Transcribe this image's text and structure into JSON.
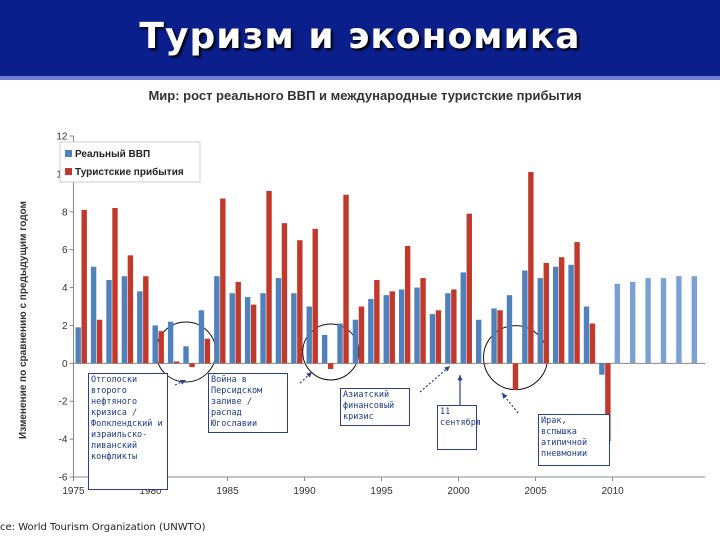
{
  "slide": {
    "title": "Туризм и экономика",
    "source": "ce: World Tourism Organization (UNWTO)"
  },
  "colors": {
    "banner": "#0a1f8c",
    "gdp": "#4f81bd",
    "gdp_forecast": "#7aa0d4",
    "arrivals": "#c0392b",
    "note_border": "#2c3e8c"
  },
  "chart_data": {
    "type": "bar",
    "title": "Мир: рост реального ВВП и международные туристские прибытия",
    "ylabel": "Изменение по сравнению с предыдущим годом",
    "xlabel": "",
    "ylim": [
      -6,
      12
    ],
    "yticks": [
      -6,
      -4,
      -2,
      0,
      2,
      4,
      6,
      8,
      10,
      12
    ],
    "xticks": [
      1975,
      1980,
      1985,
      1990,
      1995,
      2000,
      2005,
      2010
    ],
    "grid": false,
    "legend_position": "top-left",
    "x": [
      1975,
      1976,
      1977,
      1978,
      1979,
      1980,
      1981,
      1982,
      1983,
      1984,
      1985,
      1986,
      1987,
      1988,
      1989,
      1990,
      1991,
      1992,
      1993,
      1994,
      1995,
      1996,
      1997,
      1998,
      1999,
      2000,
      2001,
      2002,
      2003,
      2004,
      2005,
      2006,
      2007,
      2008,
      2009,
      2010,
      2011,
      2012,
      2013,
      2014,
      2015
    ],
    "series": [
      {
        "name": "Реальный ВВП",
        "values": [
          1.9,
          5.1,
          4.4,
          4.6,
          3.8,
          2.0,
          2.2,
          0.9,
          2.8,
          4.6,
          3.7,
          3.5,
          3.7,
          4.5,
          3.7,
          3.0,
          1.5,
          2.1,
          2.3,
          3.4,
          3.6,
          3.9,
          4.0,
          2.6,
          3.7,
          4.8,
          2.3,
          2.9,
          3.6,
          4.9,
          4.5,
          5.1,
          5.2,
          3.0,
          -0.6,
          4.2,
          4.3,
          4.5,
          4.5,
          4.6,
          4.6
        ]
      },
      {
        "name": "Туристские прибытия",
        "values": [
          8.1,
          2.3,
          8.2,
          5.7,
          4.6,
          1.7,
          0.1,
          -0.2,
          1.3,
          8.7,
          4.3,
          3.1,
          9.1,
          7.4,
          6.5,
          7.1,
          -0.3,
          8.9,
          3.0,
          4.4,
          3.8,
          6.2,
          4.5,
          2.8,
          3.9,
          7.9,
          0.0,
          2.8,
          -1.4,
          10.1,
          5.3,
          5.6,
          6.4,
          2.1,
          -4.1,
          null,
          null,
          null,
          null,
          null,
          null
        ]
      }
    ],
    "forecast_from": 2010,
    "annotations": [
      "Отголоски второго нефтяного кризиса / Фолклендский и израильско-ливанский конфликты",
      "Война в Персидском заливе / распад Югославии",
      "Азиатский финансовый кризис",
      "11 сентября",
      "Ирак, вспышка атипичной пневмонии"
    ]
  }
}
